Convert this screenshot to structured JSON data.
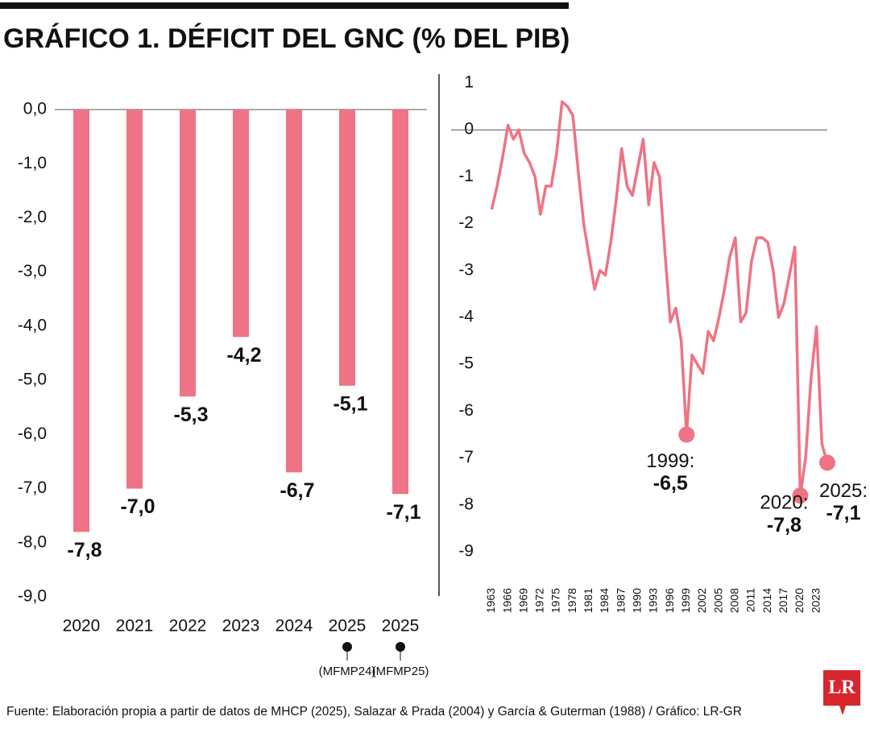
{
  "title": "GRÁFICO 1. DÉFICIT DEL GNC (% DEL PIB)",
  "source": "Fuente: Elaboración propia a partir de datos de MHCP (2025), Salazar & Prada (2004) y García & Guterman (1988) / Gráfico: LR-GR",
  "logo": "LR",
  "chart_data": [
    {
      "type": "bar",
      "color": "#ee7384",
      "categories": [
        "2020",
        "2021",
        "2022",
        "2023",
        "2024",
        "2025",
        "2025"
      ],
      "x_notes": [
        null,
        null,
        null,
        null,
        null,
        "(MFMP24)",
        "(MFMP25)"
      ],
      "values": [
        -7.8,
        -7.0,
        -5.3,
        -4.2,
        -6.7,
        -5.1,
        -7.1
      ],
      "value_labels": [
        "-7,8",
        "-7,0",
        "-5,3",
        "-4,2",
        "-6,7",
        "-5,1",
        "-7,1"
      ],
      "ylim": [
        -9,
        0
      ],
      "yticks": [
        {
          "value": 0,
          "label": "0,0"
        },
        {
          "value": -1,
          "label": "-1,0"
        },
        {
          "value": -2,
          "label": "-2,0"
        },
        {
          "value": -3,
          "label": "-3,0"
        },
        {
          "value": -4,
          "label": "-4,0"
        },
        {
          "value": -5,
          "label": "-5,0"
        },
        {
          "value": -6,
          "label": "-6,0"
        },
        {
          "value": -7,
          "label": "-7,0"
        },
        {
          "value": -8,
          "label": "-8,0"
        },
        {
          "value": -9,
          "label": "-9,0"
        }
      ]
    },
    {
      "type": "line",
      "color": "#ee7384",
      "x": [
        1963,
        1964,
        1965,
        1966,
        1967,
        1968,
        1969,
        1970,
        1971,
        1972,
        1973,
        1974,
        1975,
        1976,
        1977,
        1978,
        1979,
        1980,
        1981,
        1982,
        1983,
        1984,
        1985,
        1986,
        1987,
        1988,
        1989,
        1990,
        1991,
        1992,
        1993,
        1994,
        1995,
        1996,
        1997,
        1998,
        1999,
        2000,
        2001,
        2002,
        2003,
        2004,
        2005,
        2006,
        2007,
        2008,
        2009,
        2010,
        2011,
        2012,
        2013,
        2014,
        2015,
        2016,
        2017,
        2018,
        2019,
        2020,
        2021,
        2022,
        2023,
        2024,
        2025
      ],
      "values": [
        -1.7,
        -1.2,
        -0.6,
        0.1,
        -0.2,
        0.0,
        -0.5,
        -0.7,
        -1.0,
        -1.8,
        -1.2,
        -1.2,
        -0.5,
        0.6,
        0.5,
        0.3,
        -0.9,
        -2.0,
        -2.7,
        -3.4,
        -3.0,
        -3.1,
        -2.4,
        -1.5,
        -0.4,
        -1.2,
        -1.4,
        -0.8,
        -0.2,
        -1.6,
        -0.7,
        -1.0,
        -2.6,
        -4.1,
        -3.8,
        -4.5,
        -6.5,
        -4.8,
        -5.0,
        -5.2,
        -4.3,
        -4.5,
        -4.0,
        -3.4,
        -2.7,
        -2.3,
        -4.1,
        -3.9,
        -2.8,
        -2.3,
        -2.3,
        -2.4,
        -3.0,
        -4.0,
        -3.7,
        -3.1,
        -2.5,
        -7.8,
        -7.0,
        -5.3,
        -4.2,
        -6.7,
        -7.1
      ],
      "xlim": [
        1955.5,
        2025
      ],
      "xticks": [
        1963,
        1966,
        1969,
        1972,
        1975,
        1978,
        1981,
        1984,
        1987,
        1990,
        1993,
        1996,
        1999,
        2002,
        2005,
        2008,
        2011,
        2014,
        2017,
        2020,
        2023
      ],
      "ylim": [
        -9,
        1
      ],
      "yticks": [
        1,
        0,
        -1,
        -2,
        -3,
        -4,
        -5,
        -6,
        -7,
        -8,
        -9
      ],
      "highlights": [
        {
          "x": 1999,
          "y": -6.5,
          "label": "1999:",
          "value_label": "-6,5"
        },
        {
          "x": 2020,
          "y": -7.8,
          "label": "2020:",
          "value_label": "-7,8"
        },
        {
          "x": 2025,
          "y": -7.1,
          "label": "2025:",
          "value_label": "-7,1"
        }
      ]
    }
  ]
}
